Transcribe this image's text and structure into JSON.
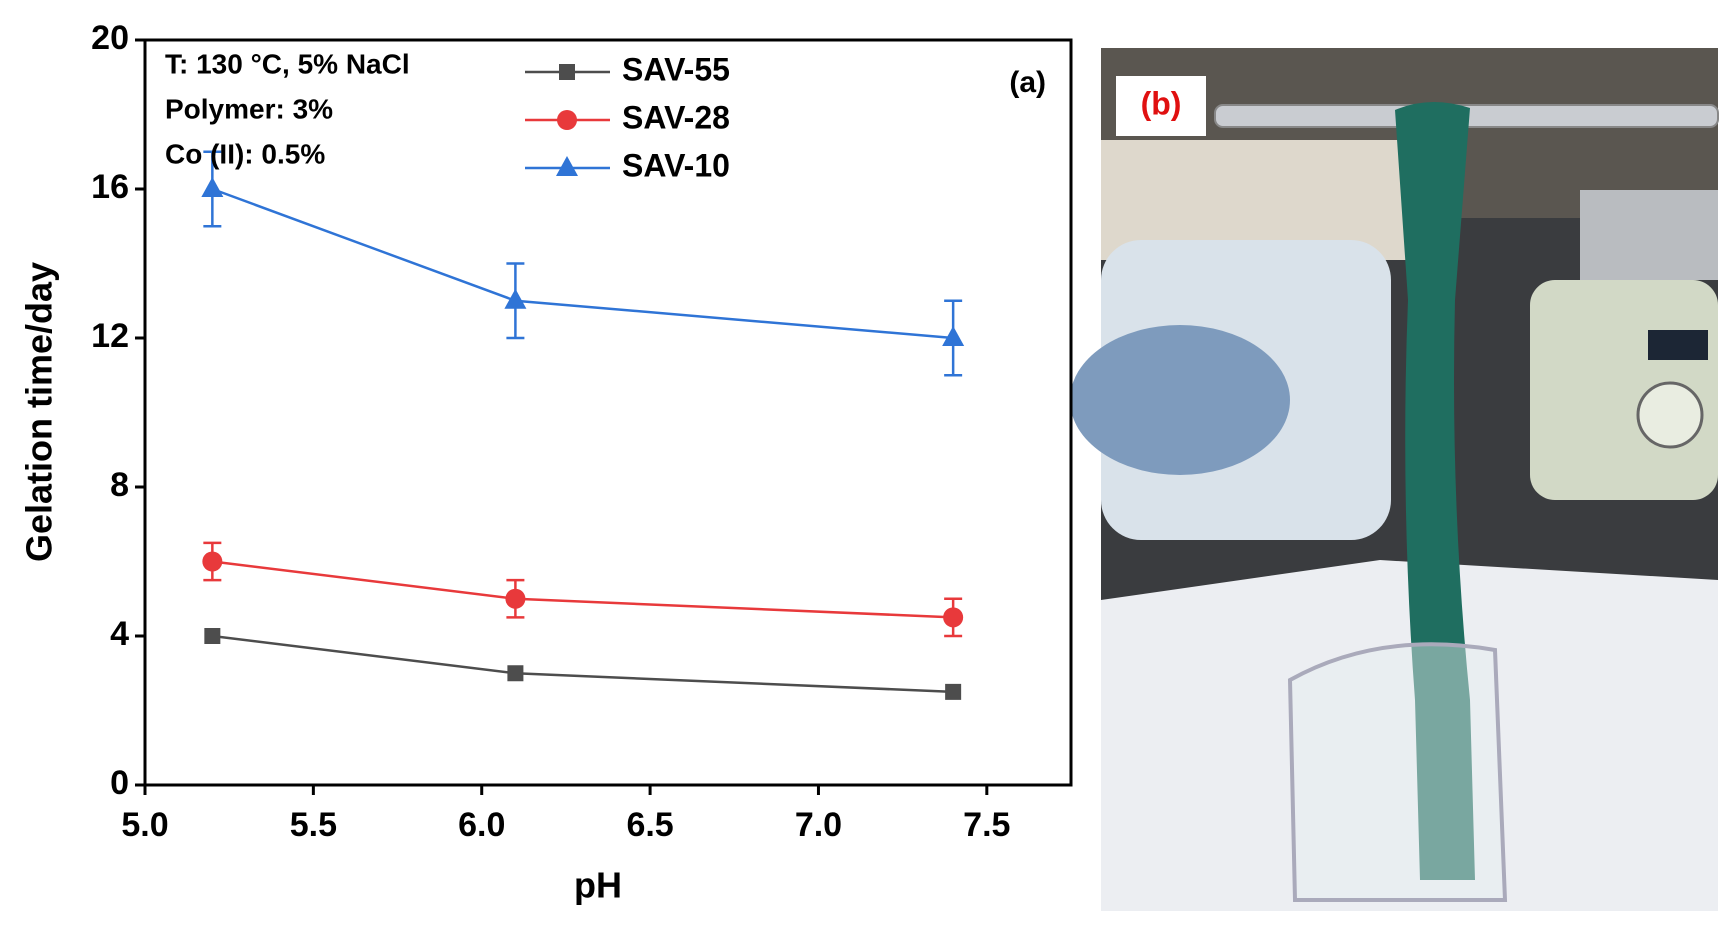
{
  "chart_data": {
    "type": "line",
    "x_label": "pH",
    "y_label": "Gelation time/day",
    "x": [
      5.2,
      6.1,
      7.4
    ],
    "series": [
      {
        "name": "SAV-55",
        "color": "#4d4d4d",
        "marker": "square",
        "values": [
          4,
          3,
          2.5
        ]
      },
      {
        "name": "SAV-28",
        "color": "#e8393b",
        "marker": "circle",
        "values": [
          6,
          5,
          4.5
        ],
        "errors": [
          0.5,
          0.5,
          0.5
        ]
      },
      {
        "name": "SAV-10",
        "color": "#2f74d6",
        "marker": "triangle",
        "values": [
          16,
          13,
          12
        ],
        "errors": [
          1,
          1,
          1
        ]
      }
    ],
    "xlim": [
      5.0,
      7.75
    ],
    "xticks": [
      {
        "value": 5.0,
        "label": "5.0"
      },
      {
        "value": 5.5,
        "label": "5.5"
      },
      {
        "value": 6.0,
        "label": "6.0"
      },
      {
        "value": 6.5,
        "label": "6.5"
      },
      {
        "value": 7.0,
        "label": "7.0"
      },
      {
        "value": 7.5,
        "label": "7.5"
      }
    ],
    "ylim": [
      0,
      20
    ],
    "yticks": [
      0,
      4,
      8,
      12,
      16,
      20
    ],
    "annotations": [
      "T: 130 °C, 5% NaCl",
      "Polymer: 3%",
      "Co (II): 0.5%"
    ],
    "panel_label": "(a)",
    "legend": "upper center"
  },
  "photo": {
    "label": "(b)"
  }
}
